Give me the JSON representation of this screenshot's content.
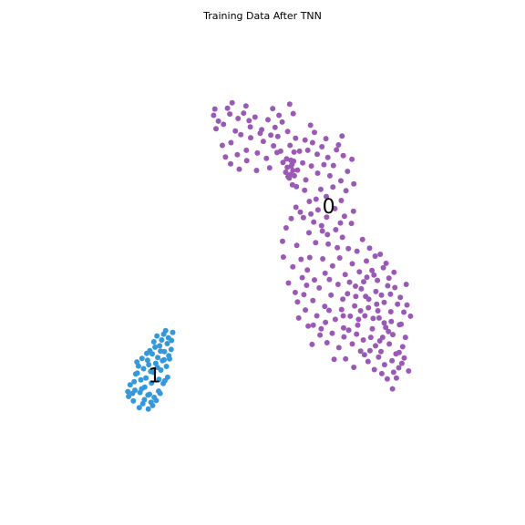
{
  "chart_data": {
    "type": "scatter",
    "title": "Training Data After TNN",
    "xlabel": "",
    "ylabel": "",
    "axes_visible": false,
    "grid": false,
    "legend": "none",
    "xlim": [
      0,
      100
    ],
    "ylim": [
      0,
      100
    ],
    "series": [
      {
        "label": "0",
        "color": "#9b59b6",
        "label_position": [
          66.8,
          61.0
        ],
        "points": [
          [
            37.6,
            81.6
          ],
          [
            38.8,
            80.3
          ],
          [
            40.1,
            79.6
          ],
          [
            41.7,
            81.9
          ],
          [
            42.3,
            84.4
          ],
          [
            43.8,
            80.9
          ],
          [
            45.2,
            82.1
          ],
          [
            46.9,
            79.0
          ],
          [
            48.1,
            81.2
          ],
          [
            49.8,
            78.4
          ],
          [
            51.4,
            80.6
          ],
          [
            52.6,
            83.1
          ],
          [
            53.2,
            78.9
          ],
          [
            55.0,
            80.1
          ],
          [
            56.4,
            78.0
          ],
          [
            57.8,
            82.0
          ],
          [
            44.5,
            77.3
          ],
          [
            47.0,
            76.6
          ],
          [
            50.2,
            75.8
          ],
          [
            42.0,
            75.5
          ],
          [
            40.6,
            72.3
          ],
          [
            43.6,
            72.8
          ],
          [
            46.0,
            71.5
          ],
          [
            48.7,
            73.2
          ],
          [
            51.0,
            72.0
          ],
          [
            52.8,
            74.8
          ],
          [
            54.6,
            73.6
          ],
          [
            56.1,
            71.9
          ],
          [
            57.3,
            70.3
          ],
          [
            55.9,
            68.9
          ],
          [
            56.8,
            67.6
          ],
          [
            57.6,
            66.1
          ],
          [
            58.9,
            69.4
          ],
          [
            60.2,
            71.0
          ],
          [
            61.5,
            73.8
          ],
          [
            62.7,
            75.5
          ],
          [
            63.9,
            72.9
          ],
          [
            65.1,
            74.6
          ],
          [
            66.6,
            72.2
          ],
          [
            68.0,
            70.4
          ],
          [
            69.3,
            75.0
          ],
          [
            70.5,
            72.6
          ],
          [
            72.7,
            71.8
          ],
          [
            70.2,
            77.0
          ],
          [
            66.1,
            76.4
          ],
          [
            63.2,
            77.8
          ],
          [
            60.8,
            76.1
          ],
          [
            59.4,
            73.6
          ],
          [
            61.0,
            67.2
          ],
          [
            64.0,
            68.7
          ],
          [
            67.1,
            68.1
          ],
          [
            69.9,
            67.0
          ],
          [
            71.2,
            64.8
          ],
          [
            70.0,
            62.6
          ],
          [
            68.4,
            60.8
          ],
          [
            66.2,
            63.5
          ],
          [
            64.1,
            60.5
          ],
          [
            63.0,
            57.8
          ],
          [
            61.8,
            55.4
          ],
          [
            63.5,
            53.2
          ],
          [
            65.2,
            55.8
          ],
          [
            66.7,
            52.9
          ],
          [
            68.6,
            56.1
          ],
          [
            70.3,
            54.4
          ],
          [
            72.6,
            57.5
          ],
          [
            73.1,
            60.2
          ],
          [
            71.8,
            51.9
          ],
          [
            69.6,
            49.8
          ],
          [
            67.8,
            48.0
          ],
          [
            65.9,
            46.4
          ],
          [
            63.2,
            44.9
          ],
          [
            61.4,
            47.1
          ],
          [
            59.8,
            49.5
          ],
          [
            57.7,
            47.8
          ],
          [
            55.3,
            50.0
          ],
          [
            55.1,
            53.5
          ],
          [
            56.6,
            44.2
          ],
          [
            58.3,
            42.1
          ],
          [
            60.5,
            41.6
          ],
          [
            62.8,
            40.3
          ],
          [
            60.9,
            38.2
          ],
          [
            59.2,
            36.4
          ],
          [
            61.6,
            34.6
          ],
          [
            63.8,
            36.9
          ],
          [
            65.8,
            39.0
          ],
          [
            67.4,
            41.5
          ],
          [
            69.2,
            43.9
          ],
          [
            71.0,
            46.1
          ],
          [
            72.8,
            48.5
          ],
          [
            74.6,
            46.7
          ],
          [
            76.4,
            49.1
          ],
          [
            77.8,
            47.0
          ],
          [
            79.2,
            44.8
          ],
          [
            80.7,
            47.6
          ],
          [
            82.1,
            45.3
          ],
          [
            83.6,
            43.2
          ],
          [
            85.0,
            41.0
          ],
          [
            86.5,
            43.9
          ],
          [
            84.3,
            39.5
          ],
          [
            82.6,
            37.8
          ],
          [
            80.9,
            39.9
          ],
          [
            78.8,
            42.3
          ],
          [
            77.0,
            40.6
          ],
          [
            75.1,
            42.9
          ],
          [
            73.4,
            39.1
          ],
          [
            71.6,
            41.8
          ],
          [
            70.1,
            38.3
          ],
          [
            68.5,
            36.1
          ],
          [
            70.6,
            34.2
          ],
          [
            72.3,
            36.8
          ],
          [
            74.2,
            34.8
          ],
          [
            76.0,
            36.9
          ],
          [
            77.9,
            34.0
          ],
          [
            79.6,
            36.4
          ],
          [
            81.3,
            34.3
          ],
          [
            83.1,
            32.7
          ],
          [
            84.8,
            34.9
          ],
          [
            86.3,
            32.1
          ],
          [
            85.6,
            30.0
          ],
          [
            83.9,
            28.4
          ],
          [
            82.2,
            30.6
          ],
          [
            80.5,
            32.1
          ],
          [
            78.7,
            30.2
          ],
          [
            79.5,
            27.7
          ],
          [
            81.0,
            26.0
          ],
          [
            82.9,
            26.9
          ],
          [
            84.6,
            25.3
          ],
          [
            86.0,
            27.5
          ],
          [
            87.1,
            24.6
          ],
          [
            84.0,
            23.0
          ],
          [
            81.7,
            22.8
          ],
          [
            83.0,
            20.6
          ],
          [
            78.4,
            24.9
          ],
          [
            76.8,
            26.7
          ],
          [
            74.9,
            29.0
          ],
          [
            72.8,
            30.6
          ],
          [
            70.7,
            32.2
          ],
          [
            69.4,
            29.8
          ],
          [
            71.1,
            27.3
          ],
          [
            73.2,
            25.4
          ],
          [
            75.6,
            31.5
          ],
          [
            68.2,
            27.2
          ],
          [
            66.4,
            30.9
          ],
          [
            64.6,
            32.6
          ],
          [
            62.6,
            30.5
          ],
          [
            66.0,
            35.4
          ],
          [
            64.4,
            43.1
          ],
          [
            62.0,
            49.9
          ],
          [
            58.7,
            52.6
          ],
          [
            56.0,
            56.5
          ],
          [
            57.3,
            58.6
          ],
          [
            59.6,
            60.0
          ],
          [
            61.9,
            62.4
          ],
          [
            60.7,
            64.9
          ],
          [
            58.6,
            65.7
          ],
          [
            66.3,
            58.9
          ],
          [
            70.8,
            59.1
          ],
          [
            73.2,
            66.3
          ],
          [
            57.0,
            74.9
          ],
          [
            58.4,
            76.5
          ],
          [
            53.9,
            76.9
          ],
          [
            55.2,
            71.1
          ],
          [
            57.9,
            71.4
          ],
          [
            57.7,
            69.3
          ],
          [
            56.3,
            70.0
          ],
          [
            58.0,
            73.4
          ],
          [
            45.9,
            73.8
          ],
          [
            44.1,
            69.6
          ],
          [
            41.9,
            70.8
          ],
          [
            39.8,
            74.9
          ],
          [
            38.2,
            78.6
          ],
          [
            37.9,
            83.0
          ],
          [
            74.0,
            51.3
          ],
          [
            75.4,
            53.9
          ],
          [
            77.2,
            52.0
          ],
          [
            79.9,
            50.6
          ],
          [
            78.3,
            46.0
          ],
          [
            75.7,
            44.5
          ],
          [
            73.6,
            43.5
          ],
          [
            74.9,
            38.0
          ],
          [
            76.9,
            38.7
          ],
          [
            80.2,
            41.5
          ],
          [
            81.8,
            43.6
          ],
          [
            83.4,
            46.6
          ],
          [
            85.9,
            37.7
          ],
          [
            87.6,
            36.8
          ],
          [
            86.7,
            39.3
          ],
          [
            82.5,
            41.7
          ],
          [
            79.3,
            38.0
          ],
          [
            77.5,
            32.1
          ],
          [
            75.9,
            28.2
          ],
          [
            73.9,
            32.8
          ],
          [
            80.1,
            28.9
          ],
          [
            48.5,
            69.3
          ],
          [
            51.8,
            69.9
          ],
          [
            53.7,
            73.3
          ],
          [
            49.4,
            77.6
          ],
          [
            46.6,
            80.4
          ],
          [
            43.1,
            78.1
          ],
          [
            54.2,
            81.6
          ],
          [
            52.1,
            77.2
          ],
          [
            45.8,
            83.7
          ],
          [
            41.1,
            83.2
          ],
          [
            56.9,
            84.1
          ],
          [
            62.2,
            79.4
          ],
          [
            65.6,
            70.6
          ],
          [
            67.9,
            65.6
          ],
          [
            64.8,
            65.1
          ],
          [
            62.4,
            70.3
          ],
          [
            68.8,
            73.9
          ],
          [
            71.6,
            69.1
          ],
          [
            63.6,
            62.9
          ],
          [
            65.3,
            49.6
          ],
          [
            69.0,
            52.1
          ],
          [
            67.0,
            45.0
          ],
          [
            60.1,
            45.4
          ],
          [
            58.9,
            40.0
          ],
          [
            61.2,
            43.7
          ],
          [
            70.4,
            40.6
          ],
          [
            72.1,
            44.4
          ],
          [
            76.2,
            41.2
          ],
          [
            79.0,
            39.5
          ],
          [
            80.9,
            35.3
          ],
          [
            78.1,
            36.3
          ],
          [
            74.4,
            36.1
          ],
          [
            71.9,
            33.7
          ],
          [
            67.7,
            33.0
          ],
          [
            66.9,
            38.1
          ],
          [
            64.9,
            34.0
          ],
          [
            62.9,
            34.8
          ],
          [
            82.7,
            35.6
          ],
          [
            85.2,
            35.0
          ],
          [
            84.7,
            28.7
          ],
          [
            83.3,
            24.3
          ],
          [
            85.4,
            26.3
          ],
          [
            80.3,
            24.0
          ],
          [
            77.3,
            29.1
          ],
          [
            70.5,
            36.9
          ],
          [
            73.7,
            41.2
          ],
          [
            76.5,
            45.5
          ],
          [
            78.6,
            50.2
          ],
          [
            81.4,
            48.6
          ],
          [
            79.8,
            31.3
          ],
          [
            82.0,
            33.4
          ],
          [
            58.5,
            61.1
          ],
          [
            60.4,
            58.8
          ],
          [
            62.3,
            59.6
          ],
          [
            65.0,
            57.0
          ],
          [
            66.5,
            55.0
          ],
          [
            69.8,
            57.6
          ],
          [
            57.5,
            70.7
          ],
          [
            57.1,
            68.4
          ],
          [
            56.5,
            67.9
          ],
          [
            58.1,
            68.1
          ],
          [
            57.2,
            71.6
          ]
        ]
      },
      {
        "label": "1",
        "color": "#3498db",
        "label_position": [
          22.6,
          23.3
        ],
        "points": [
          [
            16.4,
            21.5
          ],
          [
            17.6,
            20.3
          ],
          [
            18.9,
            19.8
          ],
          [
            20.1,
            21.0
          ],
          [
            21.3,
            19.4
          ],
          [
            22.5,
            18.7
          ],
          [
            23.6,
            20.1
          ],
          [
            24.8,
            21.8
          ],
          [
            25.9,
            23.2
          ],
          [
            24.2,
            24.8
          ],
          [
            22.9,
            26.3
          ],
          [
            21.6,
            24.5
          ],
          [
            20.4,
            23.0
          ],
          [
            19.1,
            22.6
          ],
          [
            17.8,
            23.9
          ],
          [
            18.5,
            25.7
          ],
          [
            20.8,
            27.0
          ],
          [
            22.0,
            28.4
          ],
          [
            23.4,
            27.6
          ],
          [
            24.6,
            26.9
          ],
          [
            25.6,
            25.6
          ],
          [
            26.4,
            27.3
          ],
          [
            25.1,
            28.9
          ],
          [
            23.9,
            30.2
          ],
          [
            22.7,
            29.9
          ],
          [
            24.4,
            31.5
          ],
          [
            25.8,
            30.7
          ],
          [
            26.8,
            29.4
          ],
          [
            26.1,
            32.0
          ],
          [
            24.9,
            32.8
          ],
          [
            23.2,
            32.4
          ],
          [
            16.0,
            18.9
          ],
          [
            17.2,
            17.9
          ],
          [
            18.7,
            16.4
          ],
          [
            19.6,
            17.3
          ],
          [
            21.0,
            16.1
          ],
          [
            22.1,
            16.9
          ],
          [
            23.0,
            18.0
          ],
          [
            20.9,
            19.2
          ],
          [
            19.3,
            20.6
          ],
          [
            17.4,
            22.2
          ],
          [
            15.8,
            20.0
          ],
          [
            18.2,
            24.1
          ],
          [
            19.8,
            25.1
          ],
          [
            21.1,
            26.0
          ],
          [
            22.3,
            24.3
          ],
          [
            23.7,
            22.7
          ],
          [
            25.2,
            22.4
          ],
          [
            24.0,
            19.6
          ],
          [
            21.8,
            21.9
          ],
          [
            20.0,
            18.2
          ],
          [
            26.9,
            31.4
          ],
          [
            27.2,
            33.2
          ],
          [
            25.4,
            33.6
          ],
          [
            24.1,
            29.0
          ],
          [
            22.4,
            31.1
          ],
          [
            21.4,
            29.1
          ],
          [
            20.6,
            28.5
          ],
          [
            19.4,
            27.4
          ],
          [
            18.1,
            26.6
          ],
          [
            17.0,
            19.6
          ],
          [
            21.7,
            17.6
          ],
          [
            23.3,
            25.4
          ],
          [
            26.2,
            28.0
          ],
          [
            25.0,
            27.1
          ]
        ]
      }
    ]
  }
}
